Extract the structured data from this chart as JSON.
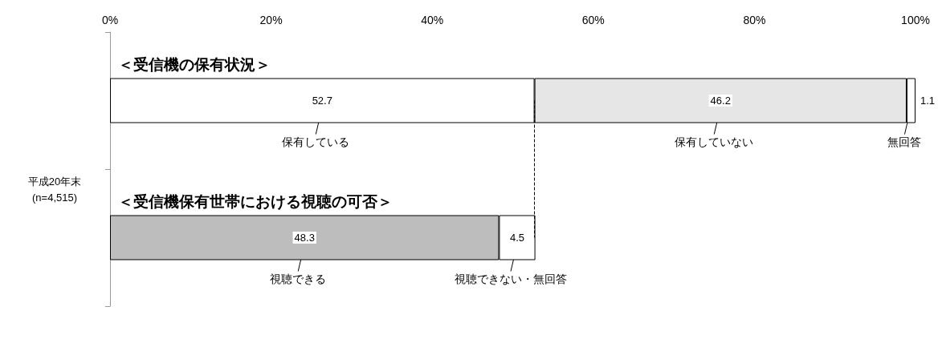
{
  "chart_data": {
    "type": "bar",
    "orientation": "horizontal",
    "stacked": true,
    "categories": [
      null,
      null
    ],
    "ylabel": "平成20年末\n(n=4,515)",
    "annotations": [
      "＜受信機の保有状況＞",
      "＜受信機保有世帯における視聴の可否＞"
    ],
    "series": [
      {
        "name": "保有している",
        "color": "#ffffff",
        "values": [
          52.7,
          null
        ]
      },
      {
        "name": "保有していない",
        "color": "#e6e6e6",
        "values": [
          46.2,
          null
        ]
      },
      {
        "name": "無回答",
        "color": "#ffffff",
        "values": [
          1.1,
          null
        ]
      },
      {
        "name": "視聴できる",
        "color": "#bdbdbd",
        "values": [
          null,
          48.3
        ]
      },
      {
        "name": "視聴できない・無回答",
        "color": "#ffffff",
        "values": [
          null,
          4.5
        ]
      }
    ],
    "xlim": [
      0,
      100
    ],
    "xticks": [
      {
        "value": 0,
        "label": "0%"
      },
      {
        "value": 20,
        "label": "20%"
      },
      {
        "value": 40,
        "label": "40%"
      },
      {
        "value": 60,
        "label": "60%"
      },
      {
        "value": 80,
        "label": "80%"
      },
      {
        "value": 100,
        "label": "100%"
      }
    ],
    "ref_lines": [
      {
        "axis": "x",
        "value": 52.7,
        "line_style": "dashed",
        "color": "#000000"
      }
    ],
    "data_labels": true,
    "grid": false,
    "legend": false
  }
}
